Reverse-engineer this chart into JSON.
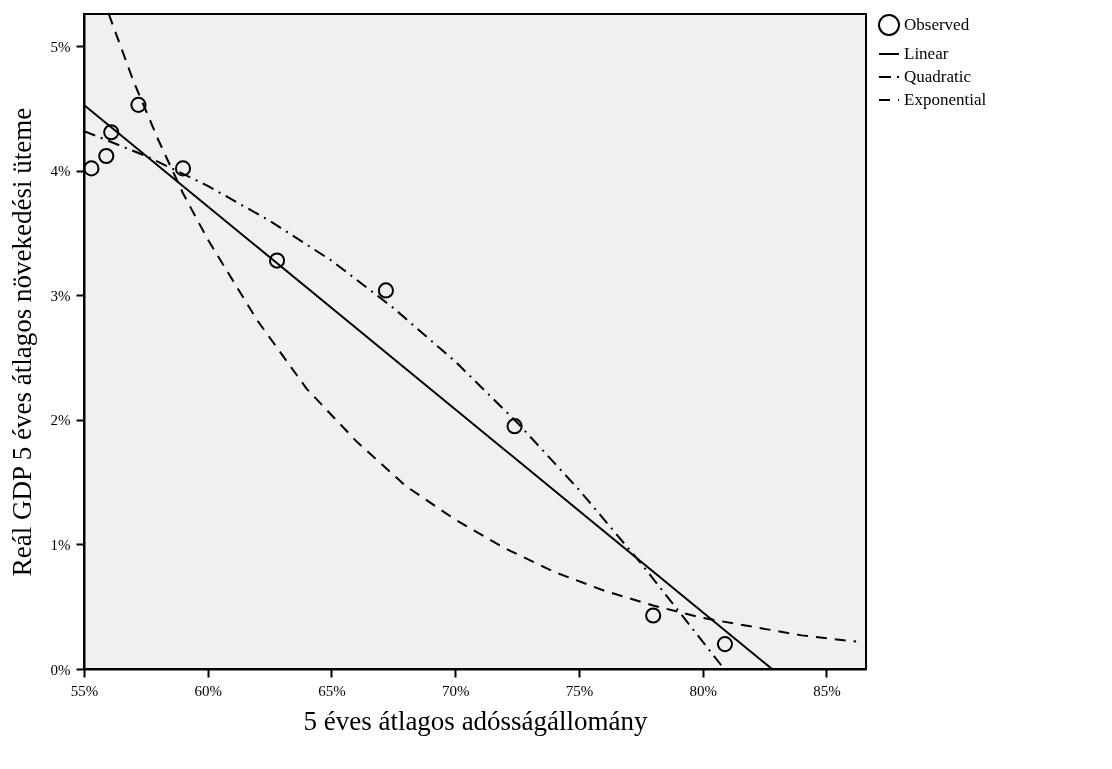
{
  "chart_data": {
    "type": "scatter",
    "xlabel": "5 éves átlagos adósságállomány",
    "ylabel": "Reál GDP 5 éves átlagos növekedési üteme",
    "xlim": [
      55,
      86.6
    ],
    "ylim": [
      0,
      5.26
    ],
    "xticks": [
      {
        "value": 55,
        "label": "55%"
      },
      {
        "value": 60,
        "label": "60%"
      },
      {
        "value": 65,
        "label": "65%"
      },
      {
        "value": 70,
        "label": "70%"
      },
      {
        "value": 75,
        "label": "75%"
      },
      {
        "value": 80,
        "label": "80%"
      },
      {
        "value": 85,
        "label": "85%"
      }
    ],
    "yticks": [
      {
        "value": 0,
        "label": "0%"
      },
      {
        "value": 1,
        "label": "1%"
      },
      {
        "value": 2,
        "label": "2%"
      },
      {
        "value": 3,
        "label": "3%"
      },
      {
        "value": 4,
        "label": "4%"
      },
      {
        "value": 5,
        "label": "5%"
      }
    ],
    "grid": false,
    "legend": "top right",
    "series": [
      {
        "name": "Observed",
        "type": "scatter",
        "marker": "circle",
        "color": "#000000",
        "x": [
          55.3,
          55.9,
          56.1,
          57.2,
          59.0,
          62.8,
          67.2,
          72.4,
          78.0,
          80.9
        ],
        "values": [
          4.02,
          4.12,
          4.31,
          4.53,
          4.02,
          3.28,
          3.04,
          1.95,
          0.43,
          0.2
        ]
      },
      {
        "name": "Linear",
        "type": "line",
        "line_style": "solid",
        "color": "#000000",
        "x": [
          55,
          82.8
        ],
        "values": [
          4.53,
          0
        ]
      },
      {
        "name": "Quadratic",
        "type": "line",
        "line_style": "dashdot",
        "color": "#000000",
        "x": [
          55,
          57.5,
          60,
          62.5,
          65,
          67.5,
          70,
          72.5,
          75,
          77.5,
          80,
          80.75
        ],
        "values": [
          4.32,
          4.12,
          3.88,
          3.6,
          3.28,
          2.9,
          2.47,
          1.98,
          1.44,
          0.85,
          0.22,
          0.03
        ]
      },
      {
        "name": "Exponential",
        "type": "line",
        "line_style": "dashed",
        "color": "#000000",
        "x": [
          56.0,
          57,
          58,
          59,
          60,
          62,
          64,
          66,
          68,
          70,
          72,
          74,
          76,
          78,
          80,
          82,
          84,
          86.2
        ],
        "values": [
          5.26,
          4.72,
          4.25,
          3.82,
          3.45,
          2.8,
          2.25,
          1.83,
          1.47,
          1.2,
          0.97,
          0.78,
          0.63,
          0.51,
          0.41,
          0.34,
          0.27,
          0.22
        ]
      }
    ]
  }
}
